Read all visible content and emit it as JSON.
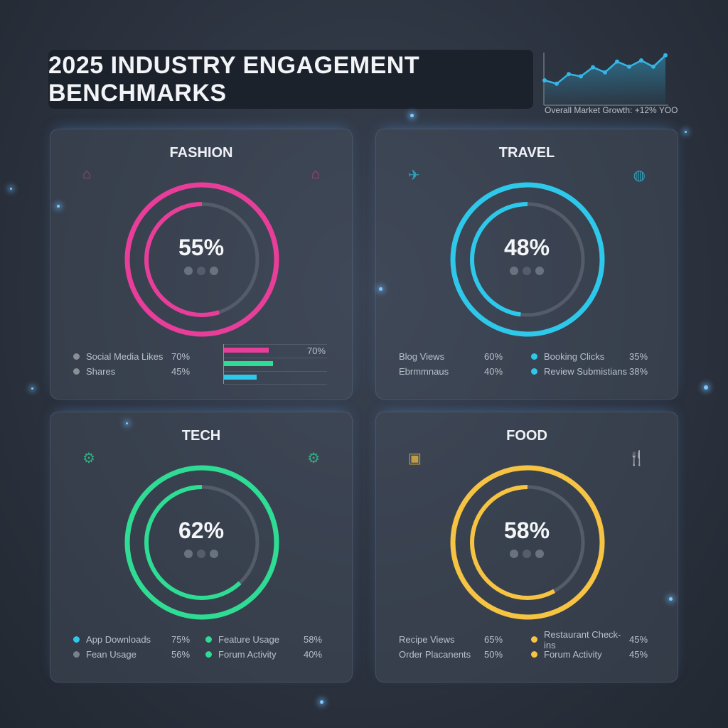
{
  "title": "2025 INDUSTRY ENGAGEMENT BENCHMARKS",
  "colors": {
    "fashion": "#e83e9a",
    "travel": "#2ec8ea",
    "tech": "#2fdc94",
    "food": "#f6c343",
    "track": "#545c69"
  },
  "chart_data": [
    {
      "type": "area",
      "caption": "Overall Market Growth: +12% YOO",
      "values": [
        40,
        34,
        51,
        47,
        63,
        54,
        73,
        64,
        75,
        64,
        84
      ],
      "grid": false,
      "line_color": "#35b6e6"
    },
    {
      "type": "donut",
      "title": "FASHION",
      "value": 55,
      "label": "55%",
      "icons": [
        "hanger-icon",
        "hanger-icon"
      ],
      "color": "#e83e9a",
      "legend": [
        {
          "label": "Social Media Likes",
          "value": "70%",
          "dot": "#8a8f97"
        },
        {
          "label": "Shares",
          "value": "45%",
          "dot": "#8a8f97"
        }
      ],
      "bars": {
        "values": [
          30,
          33,
          22
        ],
        "colors": [
          "#e83e9a",
          "#2fdc94",
          "#2ec8ea"
        ],
        "label": "70%"
      }
    },
    {
      "type": "donut",
      "title": "TRAVEL",
      "value": 48,
      "label": "48%",
      "icons": [
        "plane-icon",
        "globe-icon"
      ],
      "color": "#2ec8ea",
      "legend": [
        {
          "label": "Blog Views",
          "value": "60%",
          "dot": ""
        },
        {
          "label": "Ebrmmnaus",
          "value": "40%",
          "dot": ""
        },
        {
          "label": "Booking Clicks",
          "value": "35%",
          "dot": "#2ec8ea"
        },
        {
          "label": "Review Submistians",
          "value": "38%",
          "dot": "#2ec8ea"
        }
      ]
    },
    {
      "type": "donut",
      "title": "TECH",
      "value": 62,
      "label": "62%",
      "icons": [
        "chip-icon",
        "gear-icon"
      ],
      "color": "#2fdc94",
      "legend": [
        {
          "label": "App Downloads",
          "value": "75%",
          "dot": "#2ec8ea"
        },
        {
          "label": "Fean Usage",
          "value": "56%",
          "dot": "#7a808a"
        },
        {
          "label": "Feature Usage",
          "value": "58%",
          "dot": "#2fdc94"
        },
        {
          "label": "Forum Activity",
          "value": "40%",
          "dot": "#2fdc94"
        }
      ]
    },
    {
      "type": "donut",
      "title": "FOOD",
      "value": 58,
      "label": "58%",
      "icons": [
        "clipboard-icon",
        "fork-knife-icon"
      ],
      "color": "#f6c343",
      "legend": [
        {
          "label": "Recipe Views",
          "value": "65%",
          "dot": ""
        },
        {
          "label": "Order Placanents",
          "value": "50%",
          "dot": ""
        },
        {
          "label": "Restaurant Check-ins",
          "value": "45%",
          "dot": "#f6c343"
        },
        {
          "label": "Forum Activity",
          "value": "45%",
          "dot": "#f6c343"
        }
      ]
    }
  ]
}
